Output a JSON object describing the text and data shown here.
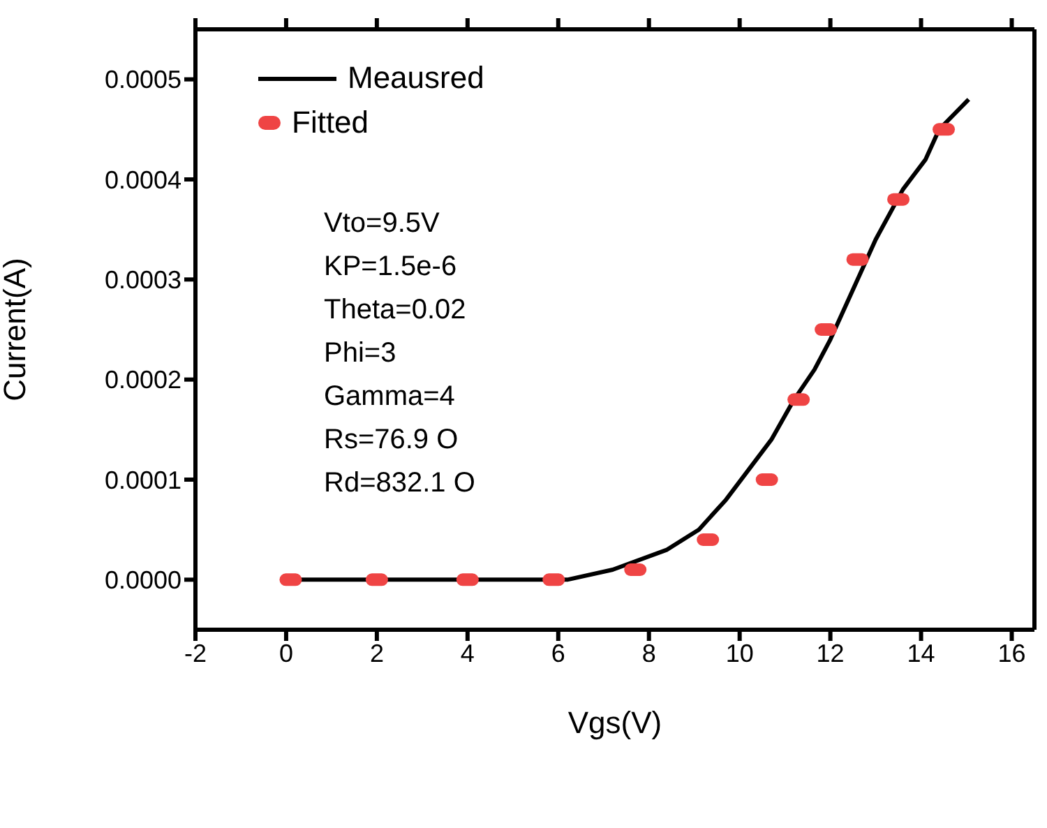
{
  "chart_data": {
    "type": "line",
    "xlabel": "Vgs(V)",
    "ylabel": "Current(A)",
    "xlim": [
      -2,
      16.5
    ],
    "xticks": [
      -2,
      0,
      2,
      4,
      6,
      8,
      10,
      12,
      14,
      16
    ],
    "ylim": [
      -5e-05,
      0.00055
    ],
    "yticks": [
      {
        "value": 0,
        "label": "0.0000"
      },
      {
        "value": 0.0001,
        "label": "0.0001"
      },
      {
        "value": 0.0002,
        "label": "0.0002"
      },
      {
        "value": 0.0003,
        "label": "0.0003"
      },
      {
        "value": 0.0004,
        "label": "0.0004"
      },
      {
        "value": 0.0005,
        "label": "0.0005"
      }
    ],
    "legend": "top left",
    "series": [
      {
        "name": "Meausred",
        "color": "#000000",
        "x": [
          0,
          2,
          4,
          5.4,
          6.2,
          7.2,
          8.4,
          9.1,
          9.7,
          10.2,
          10.7,
          11.2,
          11.65,
          12.0,
          12.4,
          13.0,
          13.6,
          14.1,
          14.4,
          15.05
        ],
        "values": [
          0,
          0,
          0,
          0,
          0,
          1e-05,
          3e-05,
          5e-05,
          8e-05,
          0.00011,
          0.00014,
          0.00018,
          0.00021,
          0.00024,
          0.00028,
          0.00034,
          0.00039,
          0.00042,
          0.00045,
          0.00048
        ]
      },
      {
        "name": "Fitted",
        "type": "scatter",
        "color": "#ef4444",
        "x": [
          0.1,
          2,
          4,
          5.9,
          7.7,
          9.3,
          10.6,
          11.3,
          11.9,
          12.6,
          13.5,
          14.5
        ],
        "values": [
          0,
          0,
          0,
          0,
          1e-05,
          4e-05,
          0.0001,
          0.00018,
          0.00025,
          0.00032,
          0.00038,
          0.00045
        ]
      }
    ],
    "annotations": [
      "Vto=9.5V",
      "KP=1.5e-6",
      "Theta=0.02",
      "Phi=3",
      "Gamma=4",
      "Rs=76.9 O",
      "Rd=832.1 O"
    ]
  }
}
